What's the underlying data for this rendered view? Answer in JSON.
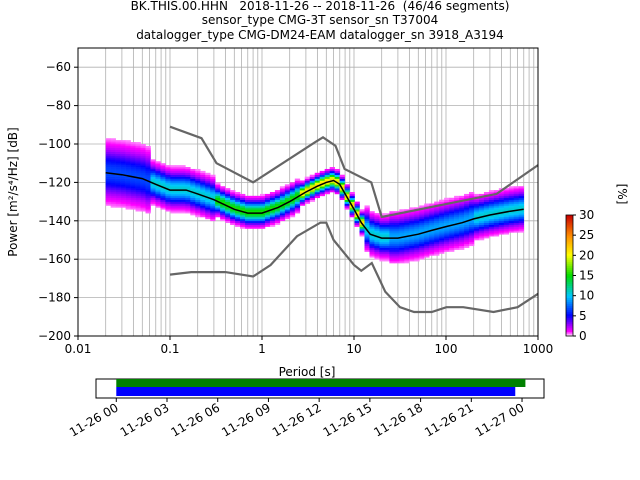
{
  "header": {
    "line1": "BK.THIS.00.HHN   2018-11-26 -- 2018-11-26  (46/46 segments)",
    "line2": "sensor_type CMG-3T sensor_sn T37004",
    "line3": "datalogger_type CMG-DM24-EAM datalogger_sn 3918_A3194"
  },
  "chart_data": {
    "type": "heatmap",
    "title": "BK.THIS.00.HHN   2018-11-26 -- 2018-11-26  (46/46 segments)",
    "xlabel": "Period [s]",
    "ylabel": "Power [m²/s⁴/Hz] [dB]",
    "xscale": "log",
    "xlim": [
      0.01,
      1000
    ],
    "ylim": [
      -200,
      -50
    ],
    "x_tick_labels": [
      "0.01",
      "0.1",
      "1",
      "10",
      "100",
      "1000"
    ],
    "y_ticks": [
      -200,
      -180,
      -160,
      -140,
      -120,
      -100,
      -80,
      -60
    ],
    "grid": true,
    "noise_models": {
      "high": {
        "x": [
          0.1,
          0.22,
          0.32,
          0.8,
          3.8,
          4.6,
          6.3,
          7.9,
          15.4,
          20,
          354.8,
          1000
        ],
        "y": [
          -91,
          -97,
          -110,
          -120,
          -99,
          -96.5,
          -101,
          -113,
          -120,
          -138,
          -126,
          -111
        ]
      },
      "low": {
        "x": [
          0.1,
          0.17,
          0.4,
          0.8,
          1.24,
          2.4,
          4.3,
          5,
          6,
          10,
          12,
          15.6,
          21.9,
          31.6,
          45,
          70,
          101,
          154,
          328,
          600,
          1000
        ],
        "y": [
          -168,
          -166.7,
          -166.7,
          -169,
          -163,
          -148,
          -141,
          -141,
          -150,
          -163,
          -166,
          -162,
          -177,
          -185,
          -187.5,
          -187.5,
          -185,
          -185,
          -187.5,
          -185,
          -178
        ]
      }
    },
    "mode": {
      "x": [
        0.02,
        0.03,
        0.05,
        0.07,
        0.1,
        0.15,
        0.2,
        0.3,
        0.5,
        0.7,
        1,
        1.5,
        2,
        3,
        4,
        5,
        6,
        7,
        8,
        10,
        12,
        15,
        20,
        30,
        50,
        70,
        100,
        150,
        200,
        300,
        500,
        700
      ],
      "y": [
        -115,
        -116,
        -118,
        -121,
        -124,
        -124,
        -126,
        -129,
        -134,
        -136,
        -136,
        -133,
        -130,
        -125,
        -122,
        -120,
        -119,
        -121,
        -126,
        -134,
        -141,
        -147,
        -149,
        -149,
        -147,
        -145,
        -143,
        -141,
        -139,
        -137,
        -135,
        -134
      ]
    },
    "colorbar": {
      "label": "[%]",
      "ticks": [
        0,
        5,
        10,
        15,
        20,
        25,
        30
      ],
      "range": [
        0,
        30
      ],
      "colormap": "pqlx"
    },
    "timeline": {
      "tick_labels": [
        "11-26 00",
        "11-26 03",
        "11-26 06",
        "11-26 09",
        "11-26 12",
        "11-26 15",
        "11-26 18",
        "11-26 21",
        "11-27 00"
      ],
      "coverage": [
        {
          "color": "#008000",
          "start_hour": 0,
          "end_hour": 24.2
        },
        {
          "color": "#0000ff",
          "start_hour": 0,
          "end_hour": 23.6
        }
      ],
      "range_hours": [
        -1.2,
        25.3
      ]
    }
  }
}
